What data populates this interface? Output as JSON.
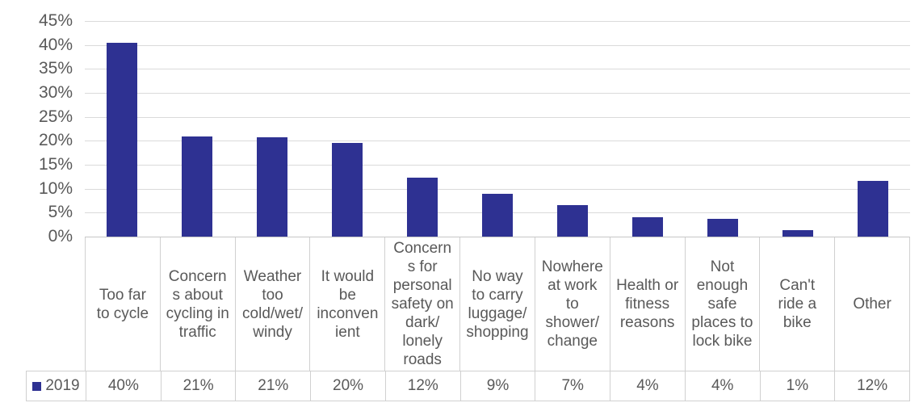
{
  "chart_data": {
    "type": "bar",
    "title": "",
    "categories": [
      "Too far\nto cycle",
      "Concern\ns about\ncycling in\ntraffic",
      "Weather\ntoo\ncold/wet/\nwindy",
      "It would\nbe\ninconven\nient",
      "Concern\ns for\npersonal\nsafety on\ndark/\nlonely\nroads",
      "No way\nto carry\nluggage/\nshopping",
      "Nowhere\nat work\nto\nshower/\nchange",
      "Health or\nfitness\nreasons",
      "Not\nenough\nsafe\nplaces to\nlock bike",
      "Can't\nride a\nbike",
      "Other"
    ],
    "series": [
      {
        "name": "2019",
        "values": [
          40.5,
          20.9,
          20.7,
          19.5,
          12.3,
          8.9,
          6.6,
          4.0,
          3.7,
          1.3,
          11.6
        ]
      }
    ],
    "table_row": {
      "legend_label": "2019",
      "values": [
        "40%",
        "21%",
        "21%",
        "20%",
        "12%",
        "9%",
        "7%",
        "4%",
        "4%",
        "1%",
        "12%"
      ]
    },
    "y_ticks": [
      "45%",
      "40%",
      "35%",
      "30%",
      "25%",
      "20%",
      "15%",
      "10%",
      "5%",
      "0%"
    ],
    "ylim": [
      0,
      45
    ],
    "grid": true,
    "legend_position": "bottom-table",
    "bar_color": "#2E3192",
    "text_color": "#595959",
    "gridline_color": "#DADADA"
  }
}
